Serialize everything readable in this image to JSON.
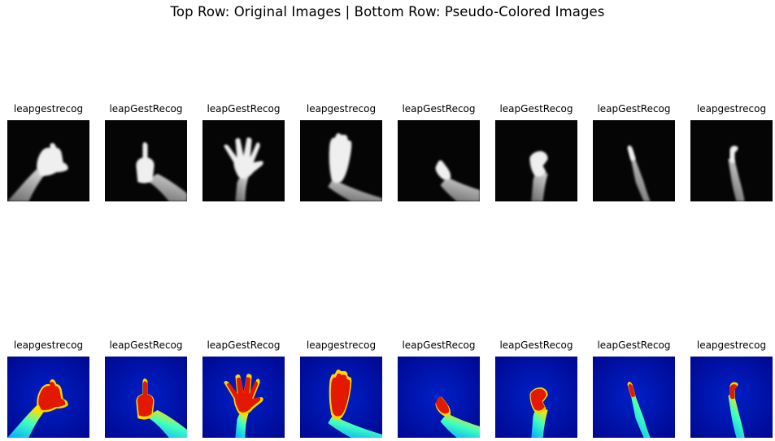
{
  "figure": {
    "title": "Top Row: Original Images | Bottom Row: Pseudo-Colored Images"
  },
  "rows": [
    {
      "kind": "original",
      "colormap": "gray",
      "images": [
        {
          "label": "leapgestrecog",
          "gesture": "palm-down-hand"
        },
        {
          "label": "leapGestRecog",
          "gesture": "index-finger-up"
        },
        {
          "label": "leapGestRecog",
          "gesture": "open-hand-spread"
        },
        {
          "label": "leapgestrecog",
          "gesture": "open-palm-fingers-together"
        },
        {
          "label": "leapGestRecog",
          "gesture": "ok-sign-side"
        },
        {
          "label": "leapGestRecog",
          "gesture": "fist-bent"
        },
        {
          "label": "leapGestRecog",
          "gesture": "flat-hand-side"
        },
        {
          "label": "leapgestrecog",
          "gesture": "hooked-hand"
        }
      ]
    },
    {
      "kind": "pseudo-colored",
      "colormap": "jet",
      "images": [
        {
          "label": "leapgestrecog",
          "gesture": "palm-down-hand"
        },
        {
          "label": "leapGestRecog",
          "gesture": "index-finger-up"
        },
        {
          "label": "leapGestRecog",
          "gesture": "open-hand-spread"
        },
        {
          "label": "leapgestrecog",
          "gesture": "open-palm-fingers-together"
        },
        {
          "label": "leapGestRecog",
          "gesture": "ok-sign-side"
        },
        {
          "label": "leapGestRecog",
          "gesture": "fist-bent"
        },
        {
          "label": "leapGestRecog",
          "gesture": "flat-hand-side"
        },
        {
          "label": "leapgestrecog",
          "gesture": "hooked-hand"
        }
      ]
    }
  ]
}
